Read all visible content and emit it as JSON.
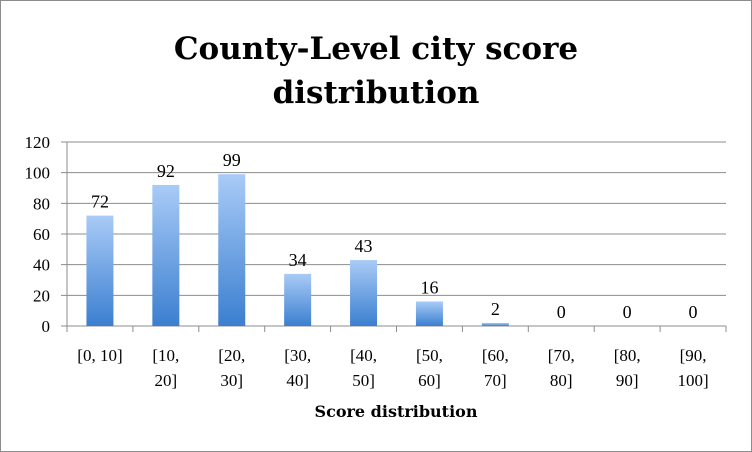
{
  "chart_data": {
    "type": "bar",
    "title_lines": [
      "County-Level city score",
      "distribution"
    ],
    "xlabel": "Score distribution",
    "ylabel": "",
    "categories": [
      [
        "[0, 10]"
      ],
      [
        "[10,",
        "20]"
      ],
      [
        "[20,",
        "30]"
      ],
      [
        "[30,",
        "40]"
      ],
      [
        "[40,",
        "50]"
      ],
      [
        "[50,",
        "60]"
      ],
      [
        "[60,",
        "70]"
      ],
      [
        "[70,",
        "80]"
      ],
      [
        "[80,",
        "90]"
      ],
      [
        "[90,",
        "100]"
      ]
    ],
    "values": [
      72,
      92,
      99,
      34,
      43,
      16,
      2,
      0,
      0,
      0
    ],
    "ylim": [
      0,
      120
    ],
    "yticks": [
      0,
      20,
      40,
      60,
      80,
      100,
      120
    ],
    "grid": true,
    "legend": "none",
    "bar_color_top": "#a9cbf7",
    "bar_color_bottom": "#3b7fd0",
    "grid_color": "#8c8c8c"
  }
}
